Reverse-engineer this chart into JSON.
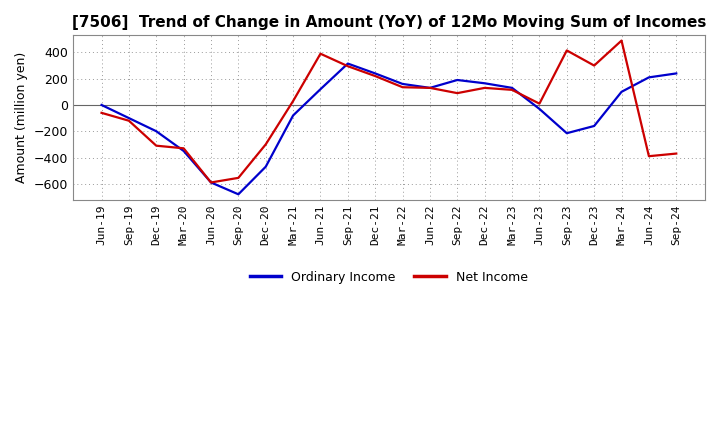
{
  "title": "[7506]  Trend of Change in Amount (YoY) of 12Mo Moving Sum of Incomes",
  "ylabel": "Amount (million yen)",
  "x_labels": [
    "Jun-19",
    "Sep-19",
    "Dec-19",
    "Mar-20",
    "Jun-20",
    "Sep-20",
    "Dec-20",
    "Mar-21",
    "Jun-21",
    "Sep-21",
    "Dec-21",
    "Mar-22",
    "Jun-22",
    "Sep-22",
    "Dec-22",
    "Mar-23",
    "Jun-23",
    "Sep-23",
    "Dec-23",
    "Mar-24",
    "Jun-24",
    "Sep-24"
  ],
  "ordinary_income": [
    0,
    -100,
    -200,
    -350,
    -590,
    -680,
    -470,
    -80,
    120,
    315,
    240,
    160,
    130,
    190,
    165,
    130,
    -30,
    -215,
    -160,
    100,
    210,
    240
  ],
  "net_income": [
    -60,
    -120,
    -310,
    -330,
    -590,
    -555,
    -300,
    30,
    390,
    295,
    220,
    135,
    130,
    90,
    130,
    115,
    10,
    415,
    300,
    490,
    -390,
    -370
  ],
  "ordinary_color": "#0000cc",
  "net_color": "#cc0000",
  "ylim": [
    -720,
    530
  ],
  "yticks": [
    -600,
    -400,
    -200,
    0,
    200,
    400
  ],
  "grid_color": "#999999",
  "background_color": "#ffffff",
  "legend_labels": [
    "Ordinary Income",
    "Net Income"
  ],
  "line_width": 1.6,
  "title_fontsize": 11,
  "axis_fontsize": 8,
  "ylabel_fontsize": 9
}
